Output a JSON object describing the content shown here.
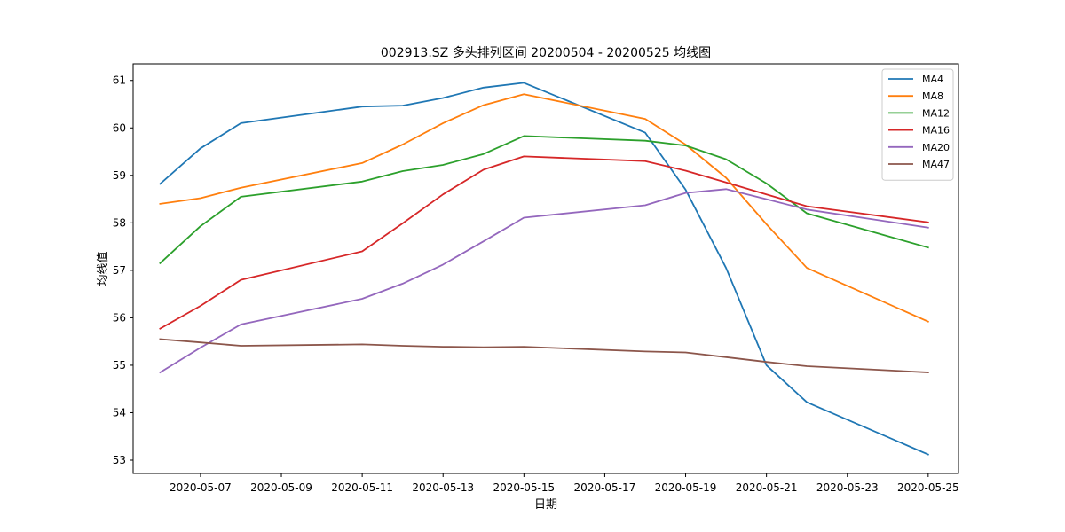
{
  "chart_data": {
    "type": "line",
    "title": "002913.SZ 多头排列区间 20200504 - 20200525 均线图",
    "xlabel": "日期",
    "ylabel": "均线值",
    "x_tick_labels": [
      "2020-05-07",
      "2020-05-09",
      "2020-05-11",
      "2020-05-13",
      "2020-05-15",
      "2020-05-17",
      "2020-05-19",
      "2020-05-21",
      "2020-05-23",
      "2020-05-25"
    ],
    "y_ticks": [
      53,
      54,
      55,
      56,
      57,
      58,
      59,
      60,
      61
    ],
    "x_range": [
      "2020-05-05T08:00",
      "2020-05-25T18:00"
    ],
    "ylim": [
      52.72,
      61.35
    ],
    "grid": false,
    "legend_position": "top-right",
    "x": [
      "2020-05-06",
      "2020-05-07",
      "2020-05-08",
      "2020-05-11",
      "2020-05-12",
      "2020-05-13",
      "2020-05-14",
      "2020-05-15",
      "2020-05-18",
      "2020-05-19",
      "2020-05-20",
      "2020-05-21",
      "2020-05-22",
      "2020-05-25"
    ],
    "series": [
      {
        "name": "MA4",
        "color": "#1f77b4",
        "values": [
          58.82,
          59.57,
          60.1,
          60.45,
          60.47,
          60.63,
          60.85,
          60.95,
          59.9,
          58.7,
          57.05,
          55.0,
          54.22,
          53.12
        ]
      },
      {
        "name": "MA8",
        "color": "#ff7f0e",
        "values": [
          58.4,
          58.52,
          58.74,
          59.26,
          59.65,
          60.1,
          60.48,
          60.71,
          60.19,
          59.65,
          58.95,
          57.97,
          57.05,
          55.92
        ]
      },
      {
        "name": "MA12",
        "color": "#2ca02c",
        "values": [
          57.15,
          57.93,
          58.55,
          58.87,
          59.09,
          59.22,
          59.45,
          59.83,
          59.73,
          59.63,
          59.34,
          58.83,
          58.2,
          57.48
        ]
      },
      {
        "name": "MA16",
        "color": "#d62728",
        "values": [
          55.77,
          56.25,
          56.8,
          57.4,
          57.99,
          58.6,
          59.12,
          59.4,
          59.3,
          59.1,
          58.85,
          58.6,
          58.35,
          58.01
        ]
      },
      {
        "name": "MA20",
        "color": "#9467bd",
        "values": [
          54.85,
          55.37,
          55.86,
          56.4,
          56.72,
          57.12,
          57.61,
          58.11,
          58.37,
          58.63,
          58.71,
          58.5,
          58.28,
          57.9
        ]
      },
      {
        "name": "MA47",
        "color": "#8c564b",
        "values": [
          55.55,
          55.48,
          55.41,
          55.44,
          55.41,
          55.39,
          55.38,
          55.39,
          55.29,
          55.27,
          55.17,
          55.07,
          54.98,
          54.85
        ]
      }
    ]
  }
}
